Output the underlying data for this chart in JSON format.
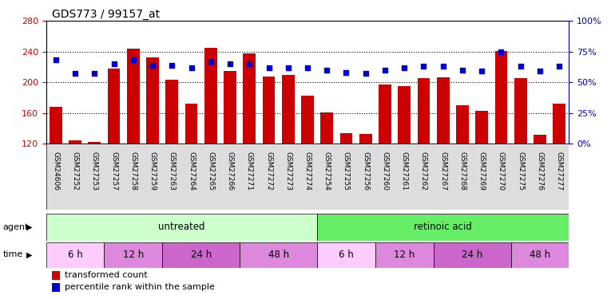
{
  "title": "GDS773 / 99157_at",
  "samples": [
    "GSM24606",
    "GSM27252",
    "GSM27253",
    "GSM27257",
    "GSM27258",
    "GSM27259",
    "GSM27263",
    "GSM27264",
    "GSM27265",
    "GSM27266",
    "GSM27271",
    "GSM27272",
    "GSM27273",
    "GSM27274",
    "GSM27254",
    "GSM27255",
    "GSM27256",
    "GSM27260",
    "GSM27261",
    "GSM27262",
    "GSM27267",
    "GSM27268",
    "GSM27269",
    "GSM27270",
    "GSM27275",
    "GSM27276",
    "GSM27277"
  ],
  "bar_values": [
    168,
    124,
    122,
    218,
    244,
    232,
    203,
    172,
    245,
    215,
    238,
    207,
    210,
    182,
    161,
    134,
    133,
    197,
    195,
    205,
    206,
    170,
    163,
    241,
    205,
    131,
    172
  ],
  "percentile_values": [
    68,
    57,
    57,
    65,
    68,
    64,
    64,
    62,
    67,
    65,
    65,
    62,
    62,
    62,
    60,
    58,
    57,
    60,
    62,
    63,
    63,
    60,
    59,
    75,
    63,
    59,
    63
  ],
  "bar_color": "#cc0000",
  "percentile_color": "#0000cc",
  "ymin": 120,
  "ymax": 280,
  "yticks_left": [
    120,
    160,
    200,
    240,
    280
  ],
  "yticks_right": [
    0,
    25,
    50,
    75,
    100
  ],
  "agent_groups": [
    {
      "label": "untreated",
      "start": 0,
      "end": 14,
      "color": "#ccffcc"
    },
    {
      "label": "retinoic acid",
      "start": 14,
      "end": 27,
      "color": "#66ee66"
    }
  ],
  "time_groups": [
    {
      "label": "6 h",
      "start": 0,
      "end": 3
    },
    {
      "label": "12 h",
      "start": 3,
      "end": 6
    },
    {
      "label": "24 h",
      "start": 6,
      "end": 10
    },
    {
      "label": "48 h",
      "start": 10,
      "end": 14
    },
    {
      "label": "6 h",
      "start": 14,
      "end": 17
    },
    {
      "label": "12 h",
      "start": 17,
      "end": 20
    },
    {
      "label": "24 h",
      "start": 20,
      "end": 24
    },
    {
      "label": "48 h",
      "start": 24,
      "end": 27
    }
  ],
  "time_colors": [
    "#ffccff",
    "#dd88dd",
    "#cc66cc",
    "#dd88dd",
    "#ffccff",
    "#dd88dd",
    "#cc66cc",
    "#dd88dd"
  ],
  "legend_bar_label": "transformed count",
  "legend_dot_label": "percentile rank within the sample",
  "bg_color": "#ffffff",
  "spine_color": "#000000",
  "tick_color_left": "#cc0000",
  "tick_color_right": "#0000cc",
  "title_fontsize": 10,
  "tick_fontsize": 8,
  "xticklabel_fontsize": 6.5,
  "row_label_fontsize": 8,
  "xtick_bg": "#dddddd"
}
